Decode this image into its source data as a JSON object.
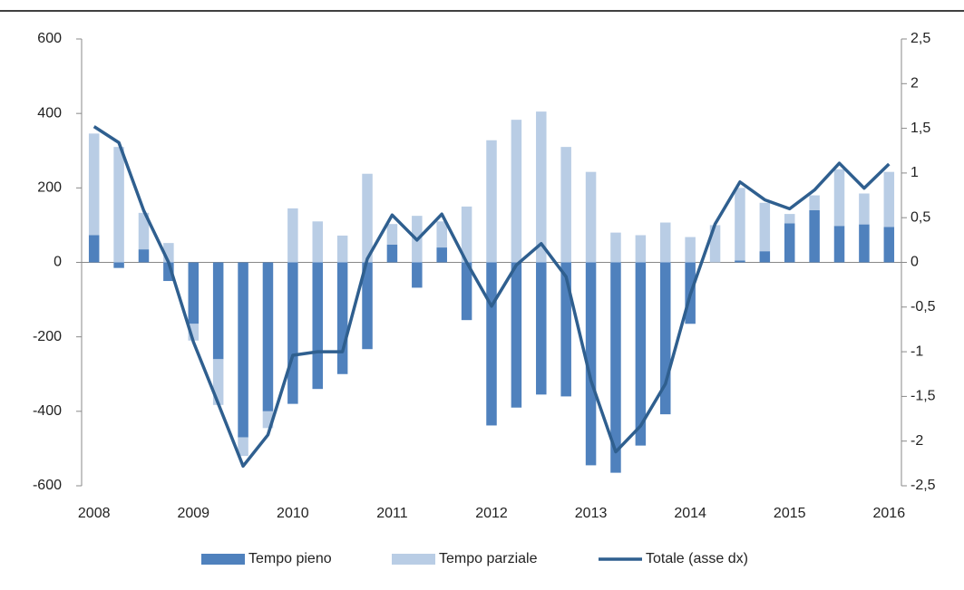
{
  "chart_data": {
    "type": "bar",
    "categories": [
      "2008",
      null,
      null,
      null,
      "2009",
      null,
      null,
      null,
      "2010",
      null,
      null,
      null,
      "2011",
      null,
      null,
      null,
      "2012",
      null,
      null,
      null,
      "2013",
      null,
      null,
      null,
      "2014",
      null,
      null,
      null,
      "2015",
      null,
      null,
      null,
      "2016"
    ],
    "series": [
      {
        "name": "Tempo pieno",
        "color": "#4f81bd",
        "values": [
          73,
          -15,
          35,
          -50,
          -165,
          -260,
          -470,
          -400,
          -380,
          -340,
          -300,
          -233,
          48,
          -68,
          40,
          -155,
          -438,
          -390,
          -355,
          -360,
          -545,
          -565,
          -492,
          -408,
          -165,
          0,
          5,
          30,
          105,
          140,
          98,
          102,
          95
        ]
      },
      {
        "name": "Tempo parziale",
        "color": "#b9cde5",
        "values": [
          273,
          310,
          98,
          52,
          -45,
          -123,
          -50,
          -45,
          145,
          110,
          72,
          238,
          55,
          125,
          70,
          150,
          328,
          383,
          405,
          310,
          243,
          80,
          73,
          107,
          68,
          100,
          195,
          130,
          25,
          40,
          152,
          83,
          148
        ]
      },
      {
        "name": "Totale (asse dx)",
        "color": "#2f5f8f",
        "axis": "y2",
        "type": "line",
        "values": [
          1.52,
          1.34,
          0.58,
          0,
          -0.89,
          -1.58,
          -2.28,
          -1.93,
          -1.04,
          -1.0,
          -1.0,
          0.04,
          0.53,
          0.25,
          0.54,
          0,
          -0.49,
          -0.03,
          0.21,
          -0.16,
          -1.32,
          -2.12,
          -1.83,
          -1.36,
          -0.36,
          0.43,
          0.9,
          0.7,
          0.6,
          0.81,
          1.11,
          0.83,
          1.1
        ]
      }
    ],
    "ylim": [
      -600,
      600
    ],
    "yticks": [
      -600,
      -400,
      -200,
      0,
      200,
      400,
      600
    ],
    "y2lim": [
      -2.5,
      2.5
    ],
    "y2ticks": [
      {
        "value": -2.5,
        "label": "-2,5"
      },
      -2,
      {
        "value": -1.5,
        "label": "-1,5"
      },
      -1,
      {
        "value": -0.5,
        "label": "-0,5"
      },
      0,
      {
        "value": 0.5,
        "label": "0,5"
      },
      1,
      {
        "value": 1.5,
        "label": "1,5"
      },
      2,
      {
        "value": 2.5,
        "label": "2,5"
      }
    ],
    "legend": "bottom"
  }
}
